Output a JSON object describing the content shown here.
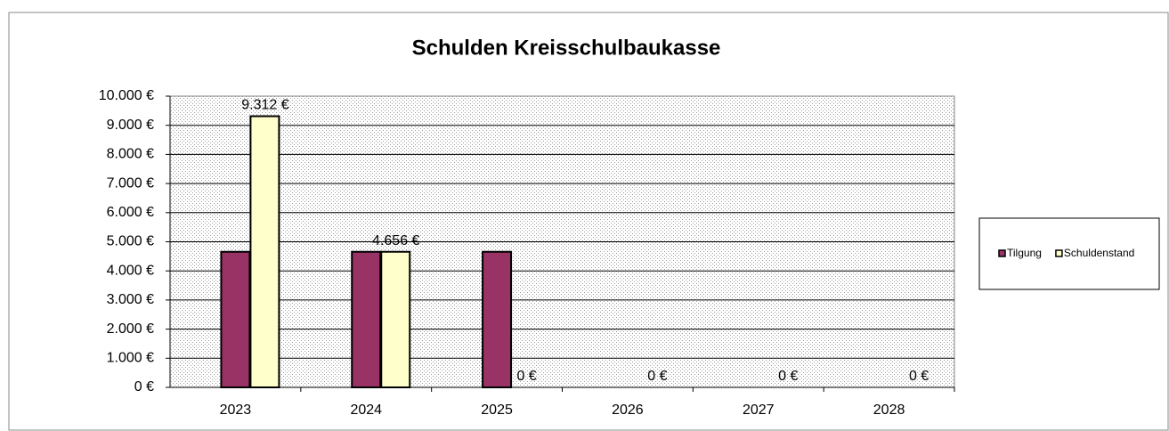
{
  "chart_data": {
    "type": "bar",
    "title": "Schulden Kreisschulbaukasse",
    "categories": [
      "2023",
      "2024",
      "2025",
      "2026",
      "2027",
      "2028"
    ],
    "series": [
      {
        "name": "Tilgung",
        "color": "#993366",
        "values": [
          4656,
          4656,
          4656,
          0,
          0,
          0
        ]
      },
      {
        "name": "Schuldenstand",
        "color": "#ffffcc",
        "values": [
          9312,
          4656,
          0,
          0,
          0,
          0
        ],
        "value_labels": [
          "9.312 €",
          "4.656 €",
          "0 €",
          "0 €",
          "0 €",
          "0 €"
        ]
      }
    ],
    "ylim": [
      0,
      10000
    ],
    "yticks": [
      {
        "value": 0,
        "label": "0 €"
      },
      {
        "value": 1000,
        "label": "1.000 €"
      },
      {
        "value": 2000,
        "label": "2.000 €"
      },
      {
        "value": 3000,
        "label": "3.000 €"
      },
      {
        "value": 4000,
        "label": "4.000 €"
      },
      {
        "value": 5000,
        "label": "5.000 €"
      },
      {
        "value": 6000,
        "label": "6.000 €"
      },
      {
        "value": 7000,
        "label": "7.000 €"
      },
      {
        "value": 8000,
        "label": "8.000 €"
      },
      {
        "value": 9000,
        "label": "9.000 €"
      },
      {
        "value": 10000,
        "label": "10.000 €"
      }
    ],
    "grid": true,
    "legend": "right"
  }
}
